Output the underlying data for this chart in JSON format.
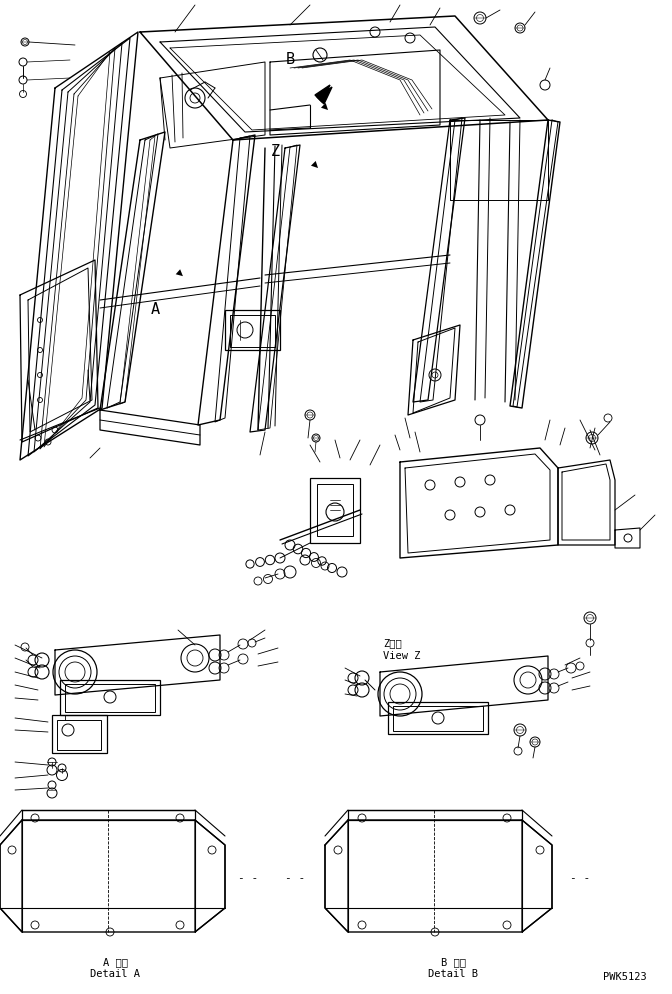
{
  "bg_color": "#ffffff",
  "line_color": "#000000",
  "title_bottom_left_jp": "A 詳細",
  "title_bottom_left_en": "Detail A",
  "title_bottom_right_jp": "B 詳細",
  "title_bottom_right_en": "Detail B",
  "part_number": "PWK5123",
  "view_z_jp": "Z　視",
  "view_z_en": "View Z",
  "label_A": "A",
  "label_B": "B",
  "label_Z": "Z",
  "figsize": [
    6.72,
    9.94
  ],
  "dpi": 100
}
